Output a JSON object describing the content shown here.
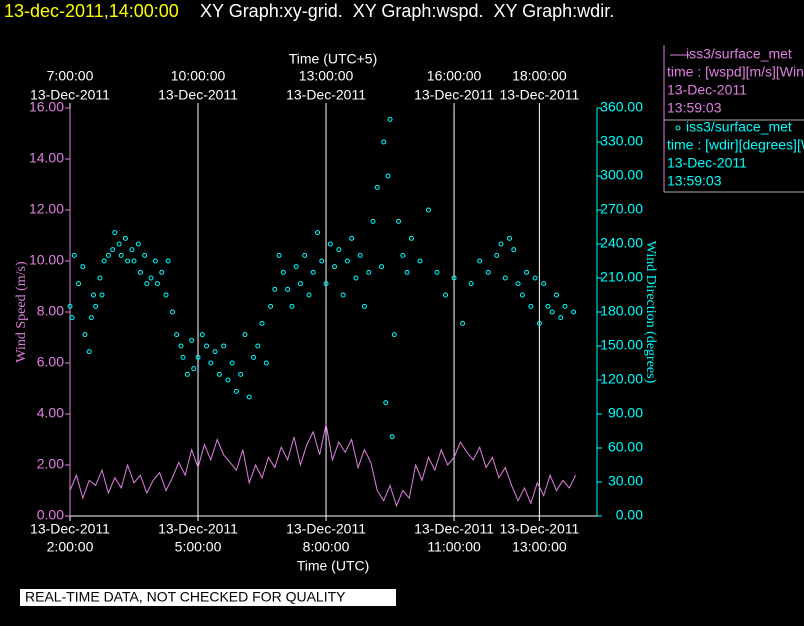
{
  "chart_data": {
    "type": "scatter-line",
    "title_time": "13-dec-2011,14:00:00",
    "title": "XY Graph:xy-grid.  XY Graph:wspd.  XY Graph:wdir.",
    "x_label": "Time (UTC)",
    "x2_label": "Time (UTC+5)",
    "y_label": "Wind Speed (m/s)",
    "y2_label": "Wind Direction (degrees)",
    "note": "REAL-TIME DATA, NOT CHECKED FOR QUALITY",
    "grid": true,
    "xlim": [
      2,
      14.35
    ],
    "xticks": [
      {
        "value": 2,
        "label": "2:00:00",
        "date": "13-Dec-2011"
      },
      {
        "value": 5,
        "label": "5:00:00",
        "date": "13-Dec-2011"
      },
      {
        "value": 8,
        "label": "8:00:00",
        "date": "13-Dec-2011"
      },
      {
        "value": 11,
        "label": "11:00:00",
        "date": "13-Dec-2011"
      },
      {
        "value": 13,
        "label": "13:00:00",
        "date": "13-Dec-2011"
      }
    ],
    "x2lim": [
      7,
      19.35
    ],
    "x2ticks": [
      {
        "value": 7,
        "label": "7:00:00",
        "date": "13-Dec-2011"
      },
      {
        "value": 10,
        "label": "10:00:00",
        "date": "13-Dec-2011"
      },
      {
        "value": 13,
        "label": "13:00:00",
        "date": "13-Dec-2011"
      },
      {
        "value": 16,
        "label": "16:00:00",
        "date": "13-Dec-2011"
      },
      {
        "value": 18,
        "label": "18:00:00",
        "date": "13-Dec-2011"
      }
    ],
    "ylim": [
      0,
      16
    ],
    "yticks": [
      {
        "value": 0,
        "label": "0.00"
      },
      {
        "value": 2,
        "label": "2.00"
      },
      {
        "value": 4,
        "label": "4.00"
      },
      {
        "value": 6,
        "label": "6.00"
      },
      {
        "value": 8,
        "label": "8.00"
      },
      {
        "value": 10,
        "label": "10.00"
      },
      {
        "value": 12,
        "label": "12.00"
      },
      {
        "value": 14,
        "label": "14.00"
      },
      {
        "value": 16,
        "label": "16.00"
      }
    ],
    "y2lim": [
      0,
      360
    ],
    "y2ticks": [
      {
        "value": 0,
        "label": "0.00"
      },
      {
        "value": 30,
        "label": "30.00"
      },
      {
        "value": 60,
        "label": "60.00"
      },
      {
        "value": 90,
        "label": "90.00"
      },
      {
        "value": 120,
        "label": "120.00"
      },
      {
        "value": 150,
        "label": "150.00"
      },
      {
        "value": 180,
        "label": "180.00"
      },
      {
        "value": 210,
        "label": "210.00"
      },
      {
        "value": 240,
        "label": "240.00"
      },
      {
        "value": 270,
        "label": "270.00"
      },
      {
        "value": 300,
        "label": "300.00"
      },
      {
        "value": 330,
        "label": "330.00"
      },
      {
        "value": 360,
        "label": "360.00"
      }
    ],
    "series": [
      {
        "name": "iss3/surface_met",
        "kind": "line",
        "color": "#e080e0",
        "legend_lines": [
          "time : [wspd][m/s][Win",
          "13-Dec-2011",
          "13:59:03"
        ],
        "x": [
          2,
          2.15,
          2.3,
          2.45,
          2.6,
          2.75,
          2.9,
          3.05,
          3.2,
          3.35,
          3.5,
          3.65,
          3.8,
          3.95,
          4.1,
          4.25,
          4.4,
          4.55,
          4.7,
          4.85,
          5,
          5.15,
          5.3,
          5.45,
          5.6,
          5.75,
          5.9,
          6.05,
          6.2,
          6.35,
          6.5,
          6.65,
          6.8,
          6.95,
          7.1,
          7.25,
          7.4,
          7.55,
          7.7,
          7.85,
          8,
          8.15,
          8.3,
          8.45,
          8.6,
          8.75,
          8.9,
          9.05,
          9.2,
          9.35,
          9.5,
          9.65,
          9.8,
          9.95,
          10.1,
          10.25,
          10.4,
          10.55,
          10.7,
          10.85,
          11,
          11.15,
          11.3,
          11.45,
          11.6,
          11.75,
          11.9,
          12.05,
          12.2,
          12.35,
          12.5,
          12.65,
          12.8,
          12.95,
          13.1,
          13.25,
          13.4,
          13.55,
          13.7,
          13.85
        ],
        "values": [
          1.0,
          1.6,
          0.7,
          1.4,
          1.2,
          1.8,
          0.9,
          1.5,
          1.1,
          2.0,
          1.3,
          1.6,
          0.9,
          1.4,
          1.7,
          1.0,
          1.5,
          2.1,
          1.6,
          2.6,
          1.9,
          2.8,
          2.2,
          3.0,
          2.4,
          2.1,
          1.8,
          2.6,
          1.3,
          2.0,
          1.5,
          2.3,
          1.9,
          2.7,
          2.2,
          3.1,
          2.0,
          2.8,
          3.3,
          2.4,
          3.6,
          2.2,
          2.9,
          2.5,
          3.0,
          1.9,
          2.6,
          2.1,
          1.0,
          0.6,
          1.2,
          0.4,
          1.0,
          0.7,
          2.0,
          1.4,
          2.3,
          1.8,
          2.6,
          2.0,
          2.3,
          2.9,
          2.5,
          2.2,
          2.7,
          1.9,
          2.3,
          1.5,
          1.9,
          1.2,
          0.6,
          1.1,
          0.5,
          1.3,
          0.8,
          1.6,
          1.0,
          1.4,
          1.1,
          1.6
        ]
      },
      {
        "name": "iss3/surface_met",
        "kind": "points",
        "axis": "y2",
        "color": "#00ffff",
        "legend_lines": [
          "time : [wdir][degrees][W",
          "13-Dec-2011",
          "13:59:03"
        ],
        "x": [
          2.0,
          2.05,
          2.1,
          2.2,
          2.3,
          2.35,
          2.45,
          2.5,
          2.55,
          2.6,
          2.7,
          2.75,
          2.8,
          2.9,
          3.0,
          3.05,
          3.15,
          3.2,
          3.3,
          3.35,
          3.45,
          3.5,
          3.6,
          3.65,
          3.75,
          3.8,
          3.9,
          4.0,
          4.05,
          4.15,
          4.25,
          4.3,
          4.4,
          4.5,
          4.6,
          4.65,
          4.75,
          4.85,
          4.9,
          5.0,
          5.1,
          5.2,
          5.3,
          5.4,
          5.5,
          5.6,
          5.7,
          5.8,
          5.9,
          6.0,
          6.1,
          6.2,
          6.3,
          6.4,
          6.5,
          6.6,
          6.7,
          6.8,
          6.9,
          7.0,
          7.1,
          7.2,
          7.3,
          7.4,
          7.5,
          7.6,
          7.7,
          7.8,
          7.9,
          8.0,
          8.1,
          8.2,
          8.3,
          8.4,
          8.5,
          8.6,
          8.7,
          8.8,
          8.9,
          9.0,
          9.1,
          9.2,
          9.3,
          9.35,
          9.4,
          9.45,
          9.5,
          9.55,
          9.6,
          9.7,
          9.8,
          9.9,
          10.0,
          10.2,
          10.4,
          10.6,
          10.8,
          11.0,
          11.2,
          11.4,
          11.6,
          11.8,
          12.0,
          12.1,
          12.2,
          12.3,
          12.4,
          12.5,
          12.6,
          12.7,
          12.8,
          12.9,
          13.0,
          13.1,
          13.2,
          13.3,
          13.4,
          13.5,
          13.6,
          13.8
        ],
        "values": [
          185,
          175,
          230,
          205,
          220,
          160,
          145,
          175,
          195,
          185,
          210,
          195,
          225,
          230,
          235,
          250,
          240,
          230,
          245,
          225,
          235,
          225,
          240,
          215,
          230,
          205,
          210,
          225,
          205,
          215,
          195,
          225,
          180,
          160,
          150,
          140,
          125,
          155,
          130,
          140,
          160,
          150,
          135,
          145,
          125,
          150,
          120,
          135,
          110,
          125,
          160,
          105,
          140,
          150,
          170,
          135,
          185,
          200,
          230,
          215,
          200,
          185,
          220,
          205,
          230,
          195,
          215,
          250,
          225,
          205,
          240,
          220,
          235,
          195,
          225,
          245,
          210,
          230,
          185,
          215,
          260,
          290,
          220,
          330,
          100,
          300,
          350,
          70,
          160,
          260,
          230,
          215,
          245,
          225,
          270,
          215,
          195,
          210,
          170,
          205,
          225,
          215,
          230,
          240,
          210,
          245,
          235,
          205,
          195,
          215,
          185,
          210,
          170,
          205,
          185,
          180,
          195,
          175,
          185,
          180
        ]
      }
    ]
  }
}
